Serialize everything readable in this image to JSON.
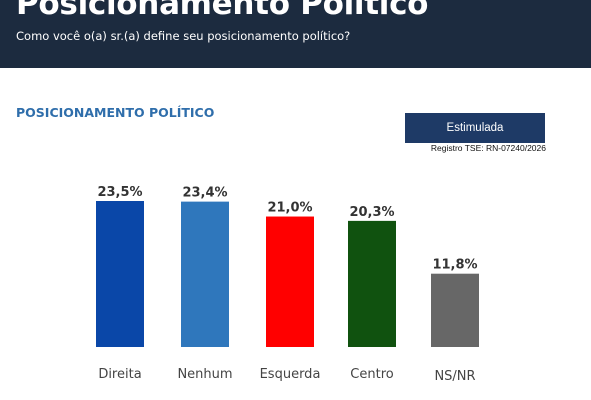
{
  "header": {
    "title": "Posicionamento Político",
    "subtitle": "Como você o(a) sr.(a) define seu posicionamento político?"
  },
  "section_title": "POSICIONAMENTO POLÍTICO",
  "badge": "Estimulada",
  "registry": "Registro TSE: RN-07240/2026",
  "colors": {
    "header_bg": "#1c2b3f",
    "accent": "#2f6eab",
    "badge_bg": "#1e3a66"
  },
  "chart_data": {
    "type": "bar",
    "categories": [
      "Direita",
      "Nenhum",
      "Esquerda",
      "Centro",
      "NS/NR"
    ],
    "values": [
      23.5,
      23.4,
      21.0,
      20.3,
      11.8
    ],
    "value_labels": [
      "23,5%",
      "23,4%",
      "21,0%",
      "20,3%",
      "11,8%"
    ],
    "colors": [
      "#0a47a8",
      "#2f77bc",
      "#ff0000",
      "#10520f",
      "#676767"
    ],
    "title": "",
    "xlabel": "",
    "ylabel": "",
    "ylim": [
      0,
      23.5
    ],
    "grid": false,
    "legend": "none"
  }
}
